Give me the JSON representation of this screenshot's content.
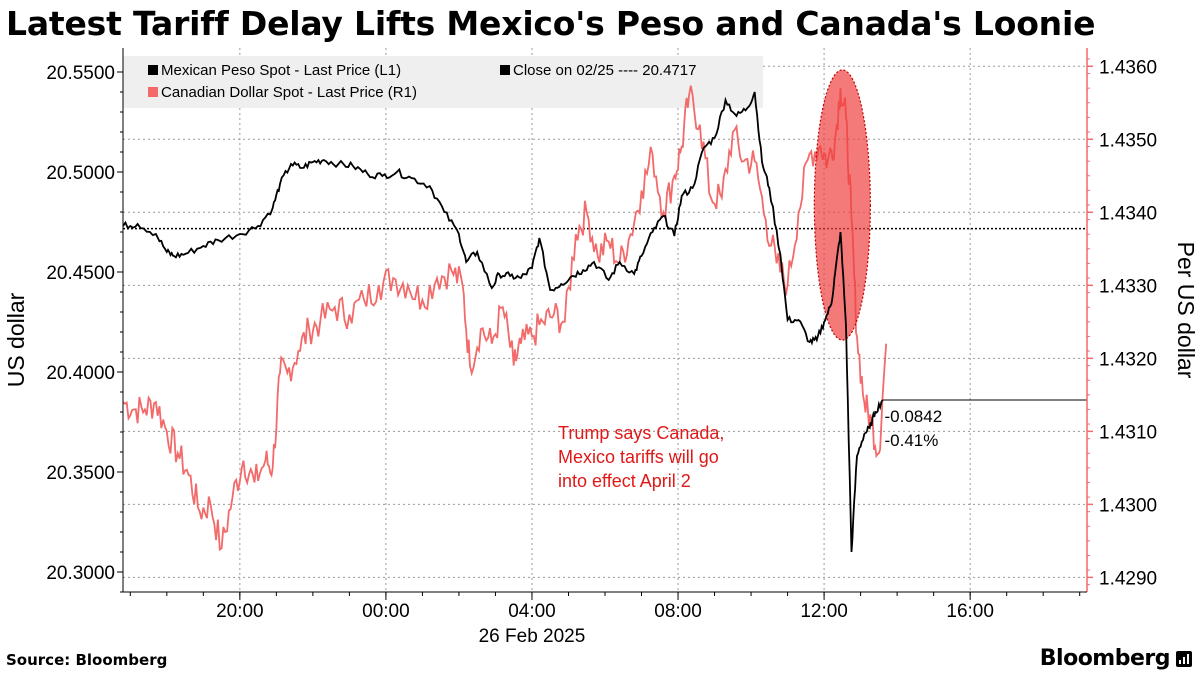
{
  "title": "Latest Tariff Delay Lifts Mexico's Peso and Canada's Loonie",
  "source": "Source: Bloomberg",
  "brand": "Bloomberg",
  "colors": {
    "peso": "#000000",
    "cad": "#f26a6a",
    "annotation": "#e01818",
    "highlight": "#f04040",
    "grid": "#9a9a9a",
    "legend_bg": "#efefef"
  },
  "chart_data": {
    "type": "line",
    "xlabel_date": "26 Feb 2025",
    "x_unit": "hours since 00:00 on 26 Feb 2025",
    "x_range": [
      -7.2,
      19.2
    ],
    "x_ticks": [
      {
        "t": -4,
        "label": "20:00"
      },
      {
        "t": 0,
        "label": "00:00"
      },
      {
        "t": 4,
        "label": "04:00"
      },
      {
        "t": 8,
        "label": "08:00"
      },
      {
        "t": 12,
        "label": "12:00"
      },
      {
        "t": 16,
        "label": "16:00"
      }
    ],
    "left_axis": {
      "label": "US dollar",
      "range": [
        20.29,
        20.562
      ],
      "ticks": [
        "20.3000",
        "20.3500",
        "20.4000",
        "20.4500",
        "20.5000",
        "20.5500"
      ]
    },
    "right_axis": {
      "label": "Per US dollar",
      "range": [
        1.4288,
        1.43625
      ],
      "ticks": [
        "1.4290",
        "1.4300",
        "1.4310",
        "1.4320",
        "1.4330",
        "1.4340",
        "1.4350",
        "1.4360"
      ]
    },
    "legend": {
      "series1": "Mexican Peso Spot - Last Price (L1)",
      "close": "Close on 02/25 ---- 20.4717",
      "series2": "Canadian Dollar Spot - Last Price (R1)"
    },
    "reference_line": {
      "axis": "left",
      "value": 20.4717,
      "label": "Close on 02/25"
    },
    "series": [
      {
        "name": "Mexican Peso Spot - Last Price (L1)",
        "axis": "left",
        "color": "#000000",
        "t": [
          -7.2,
          -6.8,
          -6.3,
          -6.0,
          -5.8,
          -5.5,
          -5.0,
          -4.6,
          -4.0,
          -3.5,
          -3.1,
          -2.9,
          -2.6,
          -2.3,
          -2.0,
          -1.7,
          -1.3,
          -0.9,
          -0.5,
          -0.1,
          0.3,
          0.7,
          1.2,
          1.6,
          2.0,
          2.2,
          2.5,
          2.9,
          3.1,
          3.4,
          3.7,
          4.0,
          4.2,
          4.5,
          4.8,
          5.1,
          5.4,
          5.7,
          6.1,
          6.4,
          6.8,
          7.0,
          7.3,
          7.6,
          7.9,
          8.1,
          8.4,
          8.7,
          9.0,
          9.3,
          9.6,
          9.9,
          10.1,
          10.3,
          10.5,
          10.8,
          11.0,
          11.3,
          11.6,
          11.8,
          12.0,
          12.2,
          12.3,
          12.45,
          12.6,
          12.75,
          12.9,
          13.1,
          13.25,
          13.4,
          13.6
        ],
        "values": [
          20.473,
          20.474,
          20.469,
          20.46,
          20.458,
          20.459,
          20.463,
          20.466,
          20.469,
          20.473,
          20.482,
          20.494,
          20.504,
          20.502,
          20.505,
          20.506,
          20.504,
          20.503,
          20.499,
          20.498,
          20.5,
          20.497,
          20.493,
          20.48,
          20.469,
          20.455,
          20.46,
          20.442,
          20.449,
          20.448,
          20.447,
          20.452,
          20.467,
          20.441,
          20.444,
          20.448,
          20.451,
          20.455,
          20.446,
          20.455,
          20.449,
          20.458,
          20.47,
          20.478,
          20.468,
          20.488,
          20.492,
          20.512,
          20.517,
          20.536,
          20.528,
          20.532,
          20.54,
          20.505,
          20.492,
          20.459,
          20.426,
          20.426,
          20.415,
          20.416,
          20.425,
          20.434,
          20.449,
          20.47,
          20.423,
          20.31,
          20.358,
          20.369,
          20.372,
          20.38,
          20.386
        ]
      },
      {
        "name": "Canadian Dollar Spot - Last Price (R1)",
        "axis": "right",
        "color": "#f26a6a",
        "t": [
          -7.2,
          -6.9,
          -6.6,
          -6.3,
          -6.0,
          -5.7,
          -5.4,
          -5.1,
          -4.8,
          -4.5,
          -4.2,
          -3.9,
          -3.6,
          -3.3,
          -3.1,
          -2.9,
          -2.7,
          -2.4,
          -2.1,
          -1.8,
          -1.4,
          -1.0,
          -0.6,
          -0.2,
          0.2,
          0.6,
          1.0,
          1.4,
          1.8,
          2.1,
          2.3,
          2.6,
          2.9,
          3.2,
          3.5,
          3.7,
          4.0,
          4.3,
          4.6,
          4.9,
          5.2,
          5.5,
          5.8,
          6.1,
          6.4,
          6.7,
          7.0,
          7.3,
          7.6,
          7.9,
          8.1,
          8.3,
          8.6,
          8.9,
          9.2,
          9.5,
          9.8,
          10.1,
          10.4,
          10.7,
          11.0,
          11.3,
          11.6,
          11.9,
          12.1,
          12.3,
          12.45,
          12.6,
          12.75,
          12.9,
          13.1,
          13.3,
          13.5,
          13.7
        ],
        "values": [
          1.4314,
          1.4313,
          1.4313,
          1.4314,
          1.431,
          1.4307,
          1.4304,
          1.4299,
          1.43,
          1.4294,
          1.4301,
          1.4306,
          1.4303,
          1.4306,
          1.4305,
          1.4318,
          1.4318,
          1.4321,
          1.4324,
          1.4325,
          1.4327,
          1.4326,
          1.4328,
          1.433,
          1.4331,
          1.433,
          1.4328,
          1.4331,
          1.4332,
          1.433,
          1.4319,
          1.4324,
          1.4322,
          1.4327,
          1.4319,
          1.4322,
          1.4323,
          1.4325,
          1.4326,
          1.4325,
          1.4337,
          1.434,
          1.4334,
          1.4336,
          1.4333,
          1.4337,
          1.4343,
          1.4348,
          1.434,
          1.4345,
          1.4349,
          1.4356,
          1.4352,
          1.4342,
          1.4342,
          1.4351,
          1.4347,
          1.4347,
          1.4339,
          1.4333,
          1.433,
          1.434,
          1.4348,
          1.4349,
          1.4347,
          1.435,
          1.4357,
          1.4353,
          1.4339,
          1.4323,
          1.4314,
          1.4311,
          1.4307,
          1.4322
        ]
      }
    ],
    "last_change": {
      "abs": "-0.0842",
      "pct": "-0.41%"
    },
    "annotation": {
      "lines": [
        "Trump says Canada,",
        "Mexico tariffs will go",
        "into effect April 2"
      ],
      "t": 12.5
    }
  }
}
